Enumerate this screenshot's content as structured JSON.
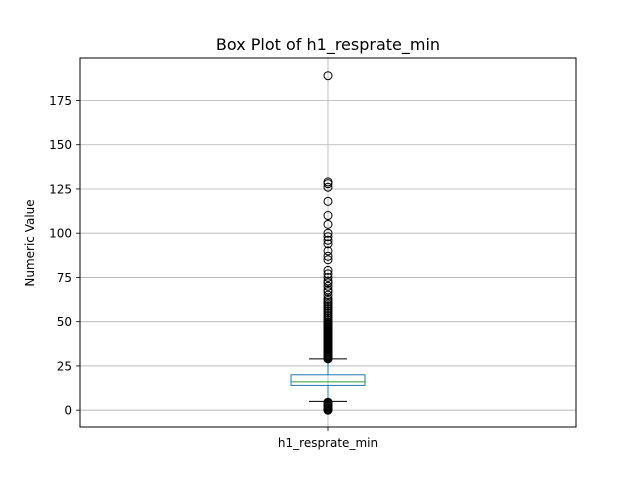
{
  "chart_data": {
    "type": "box",
    "title": "Box Plot of h1_resprate_min",
    "xlabel": "",
    "ylabel": "Numeric Value",
    "ylim": [
      -9.5,
      199
    ],
    "yticks": [
      0,
      25,
      50,
      75,
      100,
      125,
      150,
      175
    ],
    "grid": true,
    "categories": [
      "h1_resprate_min"
    ],
    "series": [
      {
        "category": "h1_resprate_min",
        "q1": 14,
        "median": 16,
        "q3": 20,
        "whisker_low": 5,
        "whisker_high": 29,
        "outliers_high": [
          29,
          29.5,
          30,
          30.5,
          31,
          31.5,
          32,
          32.5,
          33,
          33.5,
          34,
          34.5,
          35,
          35.5,
          36,
          36.5,
          37,
          37.5,
          38,
          38.5,
          39,
          39.5,
          40,
          40.5,
          41,
          41.5,
          42,
          42.5,
          43,
          43.5,
          44,
          44.5,
          45,
          45.5,
          46,
          46.5,
          47,
          47.5,
          48,
          48.5,
          49,
          49.5,
          50,
          51,
          52,
          53,
          54,
          55,
          56,
          57,
          58,
          59,
          60,
          61,
          62,
          63,
          65,
          67,
          68,
          70,
          72,
          73,
          75,
          77,
          79,
          85,
          87,
          90,
          94,
          96,
          98,
          100,
          105,
          110,
          118,
          126,
          128,
          129,
          189
        ],
        "outliers_low": [
          0,
          0.5,
          1,
          1.5,
          2,
          2.5,
          3,
          3.5,
          4,
          4.5
        ]
      }
    ]
  },
  "colors": {
    "box": "#1f77b4",
    "median": "#2ca02c",
    "whisker": "#000000",
    "grid": "#b0b0b0",
    "axes": "#000000"
  }
}
